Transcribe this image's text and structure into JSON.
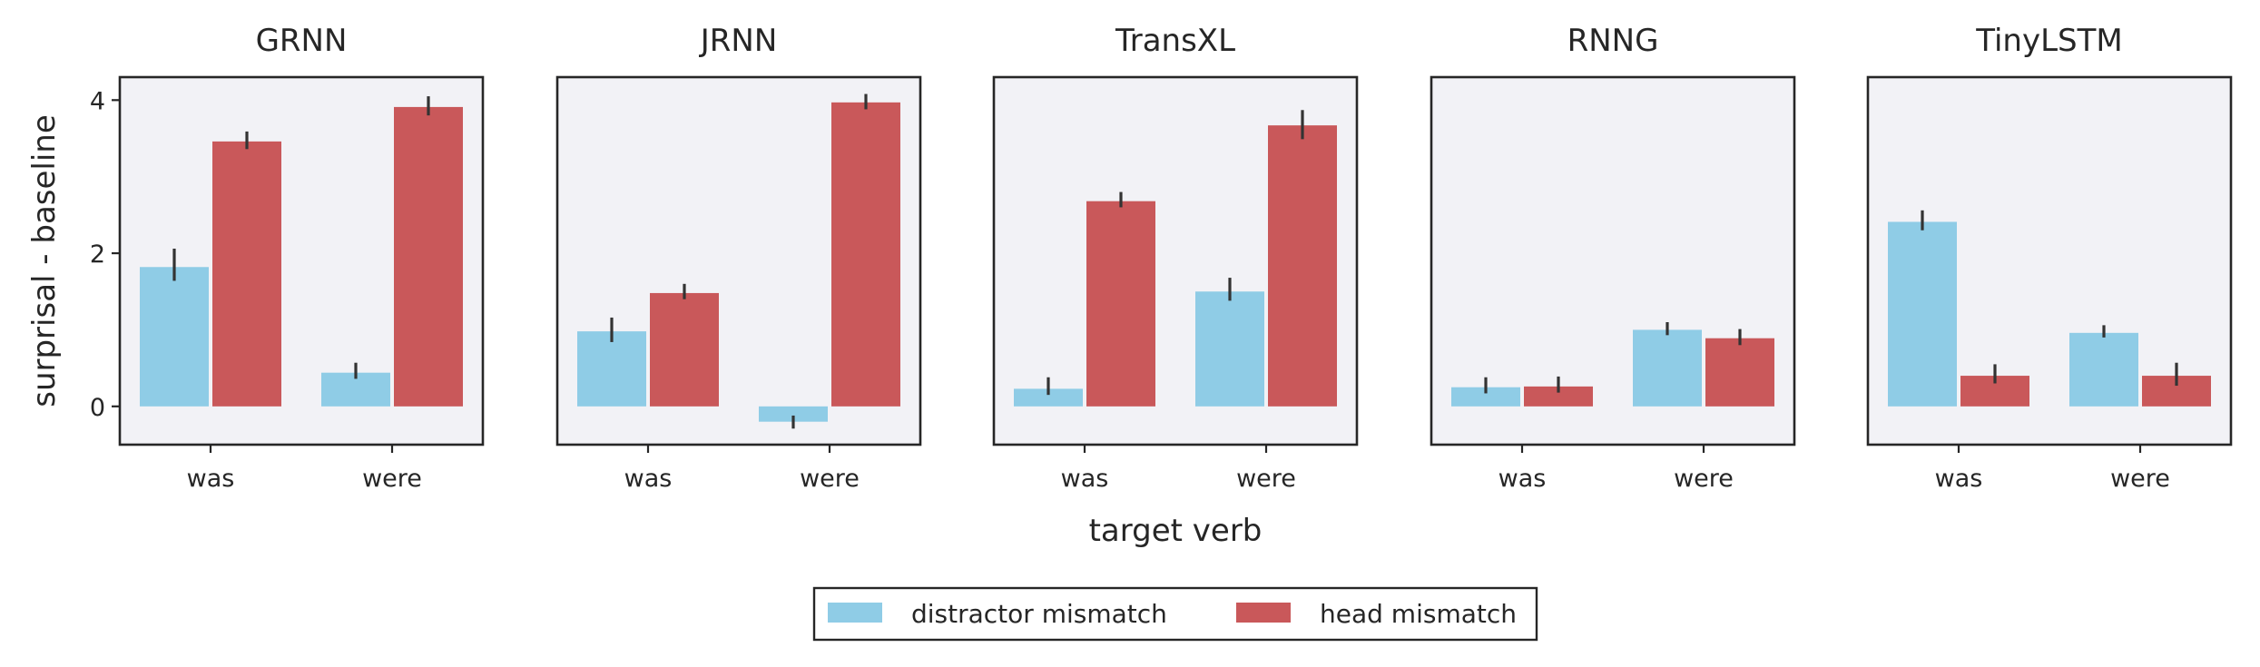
{
  "chart_data": {
    "type": "bar",
    "ylabel": "surprisal - baseline",
    "xlabel": "target verb",
    "categories": [
      "was",
      "were"
    ],
    "ylim": [
      -0.5,
      4.3
    ],
    "yticks": [
      0,
      2,
      4
    ],
    "legend": {
      "placement": "bottom-center",
      "entries": [
        "distractor mismatch",
        "head mismatch"
      ]
    },
    "colors": {
      "distractor mismatch": "#8fcce6",
      "head mismatch": "#c9585a"
    },
    "panels": [
      {
        "title": "GRNN",
        "series": [
          {
            "name": "distractor mismatch",
            "values": [
              1.82,
              0.44
            ],
            "err_low": [
              1.64,
              0.36
            ],
            "err_high": [
              2.06,
              0.57
            ]
          },
          {
            "name": "head mismatch",
            "values": [
              3.46,
              3.91
            ],
            "err_low": [
              3.36,
              3.8
            ],
            "err_high": [
              3.59,
              4.05
            ]
          }
        ]
      },
      {
        "title": "JRNN",
        "series": [
          {
            "name": "distractor mismatch",
            "values": [
              0.98,
              -0.2
            ],
            "err_low": [
              0.84,
              -0.29
            ],
            "err_high": [
              1.16,
              -0.12
            ]
          },
          {
            "name": "head mismatch",
            "values": [
              1.48,
              3.97
            ],
            "err_low": [
              1.4,
              3.88
            ],
            "err_high": [
              1.6,
              4.08
            ]
          }
        ]
      },
      {
        "title": "TransXL",
        "series": [
          {
            "name": "distractor mismatch",
            "values": [
              0.23,
              1.5
            ],
            "err_low": [
              0.15,
              1.38
            ],
            "err_high": [
              0.38,
              1.68
            ]
          },
          {
            "name": "head mismatch",
            "values": [
              2.68,
              3.67
            ],
            "err_low": [
              2.6,
              3.49
            ],
            "err_high": [
              2.8,
              3.87
            ]
          }
        ]
      },
      {
        "title": "RNNG",
        "series": [
          {
            "name": "distractor mismatch",
            "values": [
              0.25,
              1.0
            ],
            "err_low": [
              0.17,
              0.93
            ],
            "err_high": [
              0.38,
              1.1
            ]
          },
          {
            "name": "head mismatch",
            "values": [
              0.26,
              0.89
            ],
            "err_low": [
              0.18,
              0.8
            ],
            "err_high": [
              0.39,
              1.01
            ]
          }
        ]
      },
      {
        "title": "TinyLSTM",
        "series": [
          {
            "name": "distractor mismatch",
            "values": [
              2.41,
              0.96
            ],
            "err_low": [
              2.3,
              0.9
            ],
            "err_high": [
              2.56,
              1.06
            ]
          },
          {
            "name": "head mismatch",
            "values": [
              0.4,
              0.4
            ],
            "err_low": [
              0.3,
              0.27
            ],
            "err_high": [
              0.55,
              0.57
            ]
          }
        ]
      }
    ]
  }
}
